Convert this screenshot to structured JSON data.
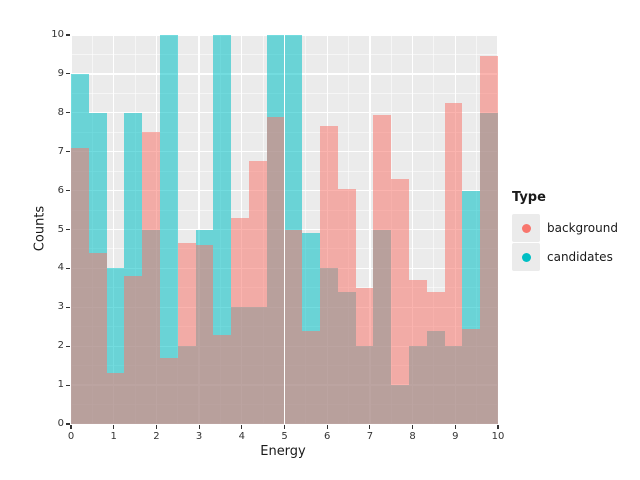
{
  "axes": {
    "x": {
      "label": "Energy",
      "range": [
        0,
        10
      ],
      "ticks": [
        0,
        1,
        2,
        3,
        4,
        5,
        6,
        7,
        8,
        9,
        10
      ]
    },
    "y": {
      "label": "Counts",
      "range": [
        0,
        10
      ],
      "ticks": [
        0,
        1,
        2,
        3,
        4,
        5,
        6,
        7,
        8,
        9,
        10
      ]
    }
  },
  "legend": {
    "title": "Type",
    "items": [
      {
        "label": "background",
        "color": "#F8766D"
      },
      {
        "label": "candidates",
        "color": "#00BFC4"
      }
    ]
  },
  "colors": {
    "panel_background": "#EBEBEB",
    "gridline": "#FFFFFF",
    "background_fill": "#F8766D",
    "candidates_fill": "#00BFC4",
    "overlap_appearance": "#B8A09C",
    "tick_text": "#333333"
  },
  "chart_data": {
    "type": "bar",
    "subtype": "overlapping-histogram",
    "title": "",
    "xlabel": "Energy",
    "ylabel": "Counts",
    "xlim": [
      0,
      10
    ],
    "ylim": [
      0,
      10
    ],
    "grid": "on",
    "legend_position": "right",
    "bins": 24,
    "bin_start": 0,
    "bin_width": 0.41667,
    "fill_alpha": 0.55,
    "series": [
      {
        "name": "background",
        "color": "#F8766D",
        "layer": 2,
        "counts": [
          7.1,
          4.4,
          1.3,
          3.8,
          7.5,
          1.7,
          4.65,
          4.6,
          2.3,
          5.3,
          6.75,
          7.9,
          5.0,
          2.4,
          7.65,
          6.05,
          3.5,
          7.95,
          6.3,
          3.7,
          3.4,
          8.25,
          2.45,
          9.45
        ]
      },
      {
        "name": "candidates",
        "color": "#00BFC4",
        "layer": 1,
        "counts": [
          9.0,
          8.0,
          4.0,
          8.0,
          5.0,
          10.0,
          2.0,
          5.0,
          10.0,
          3.0,
          3.0,
          10.0,
          10.0,
          4.9,
          4.0,
          3.4,
          2.0,
          5.0,
          1.0,
          2.0,
          2.4,
          2.0,
          6.0,
          8.0
        ]
      }
    ]
  }
}
